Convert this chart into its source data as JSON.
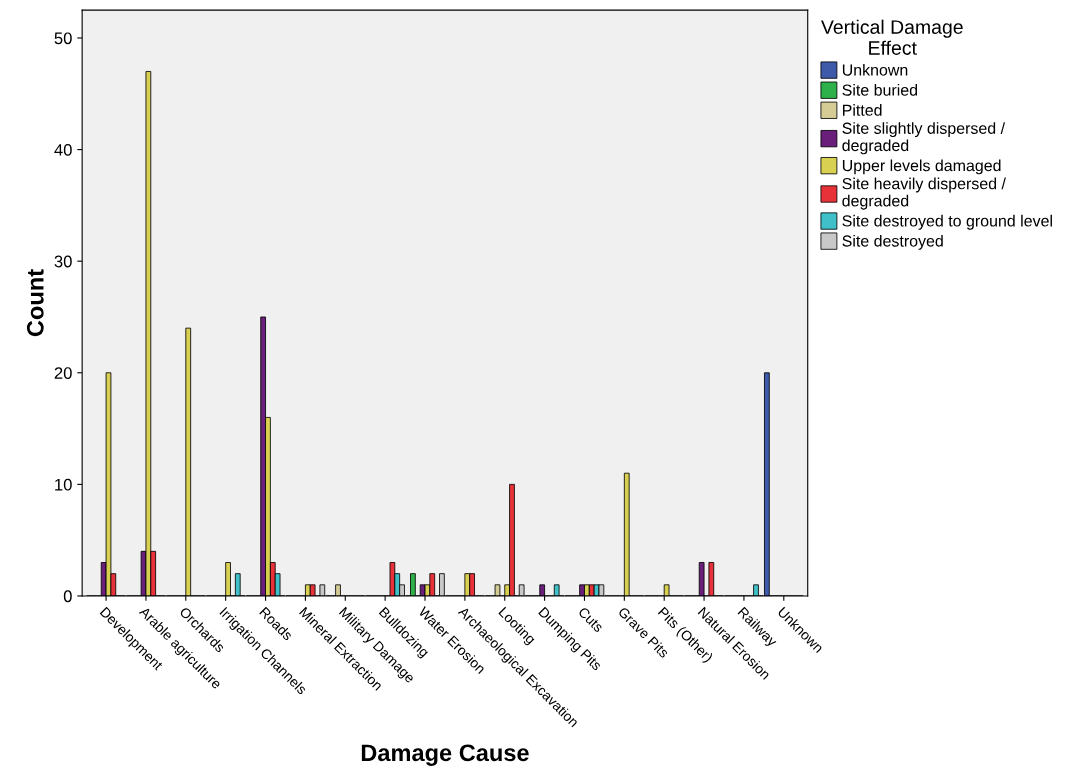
{
  "chart_data": {
    "type": "bar",
    "xlabel": "Damage Cause",
    "ylabel": "Count",
    "legend_title": "Vertical Damage Effect",
    "legend": "right",
    "grid": false,
    "categories": [
      "Development",
      "Arable agriculture",
      "Orchards",
      "Irrigation Channels",
      "Roads",
      "Mineral Extraction",
      "Military Damage",
      "Bulldozing",
      "Water Erosion",
      "Archaeological Excavation",
      "Looting",
      "Dumping Pits",
      "Cuts",
      "Grave Pits",
      "Pits (Other)",
      "Natural Erosion",
      "Railway",
      "Unknown"
    ],
    "ylim": [
      0,
      52.5
    ],
    "yticks": [
      0,
      10,
      20,
      30,
      40,
      50
    ],
    "series": [
      {
        "name": "Unknown",
        "color": "#3e5aa8",
        "values": [
          0,
          0,
          0,
          0,
          0,
          0,
          0,
          0,
          0,
          0,
          0,
          0,
          0,
          0,
          0,
          0,
          0,
          20
        ]
      },
      {
        "name": "Site buried",
        "color": "#2eb04a",
        "values": [
          0,
          0,
          0,
          0,
          0,
          0,
          0,
          0,
          2,
          0,
          0,
          0,
          0,
          0,
          0,
          0,
          0,
          0
        ]
      },
      {
        "name": "Pitted",
        "color": "#d4cc94",
        "values": [
          0,
          0,
          0,
          0,
          0,
          0,
          1,
          0,
          0,
          0,
          1,
          0,
          0,
          0,
          0,
          0,
          0,
          0
        ]
      },
      {
        "name": "Site slightly dispersed / degraded",
        "color": "#6a1f7a",
        "values": [
          3,
          4,
          0,
          0,
          25,
          0,
          0,
          0,
          1,
          0,
          0,
          1,
          1,
          0,
          0,
          3,
          0,
          0
        ]
      },
      {
        "name": "Upper levels damaged",
        "color": "#d8d050",
        "values": [
          20,
          47,
          24,
          3,
          16,
          1,
          0,
          0,
          1,
          2,
          1,
          0,
          1,
          11,
          1,
          0,
          0,
          0
        ]
      },
      {
        "name": "Site heavily dispersed / degraded",
        "color": "#e8323a",
        "values": [
          2,
          4,
          0,
          0,
          3,
          1,
          0,
          3,
          2,
          2,
          10,
          0,
          1,
          0,
          0,
          3,
          0,
          0
        ]
      },
      {
        "name": "Site destroyed to ground level",
        "color": "#40c0c8",
        "values": [
          0,
          0,
          0,
          2,
          2,
          0,
          0,
          2,
          0,
          0,
          0,
          1,
          1,
          0,
          0,
          0,
          1,
          0
        ]
      },
      {
        "name": "Site destroyed",
        "color": "#c8c8c8",
        "values": [
          0,
          0,
          0,
          0,
          0,
          1,
          0,
          1,
          2,
          0,
          1,
          0,
          1,
          0,
          0,
          0,
          0,
          0
        ]
      }
    ]
  }
}
